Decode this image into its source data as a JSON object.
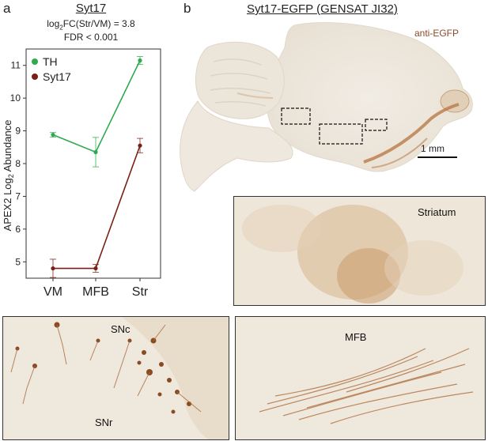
{
  "panel_a": {
    "letter": "a",
    "title": "Syt17",
    "stat_prefix": "log",
    "stat_sub": "2",
    "stat_rest": "FC(Str/VM) = 3.8",
    "fdr": "FDR < 0.001"
  },
  "panel_b": {
    "letter": "b",
    "title": "Syt17-EGFP (GENSAT JI32)",
    "stain": "anti-EGFP",
    "scale_bar": "1 mm",
    "insets": {
      "striatum": "Striatum",
      "snc": "SNc",
      "snr": "SNr",
      "mfb": "MFB"
    }
  },
  "colors": {
    "th": "#2eab4f",
    "syt17": "#7a1f14",
    "stain": "#8a4a2a"
  },
  "chart_data": {
    "type": "line",
    "categories": [
      "VM",
      "MFB",
      "Str"
    ],
    "ylabel_main": "APEX2 Log",
    "ylabel_sub": "2",
    "ylabel_tail": " Abundance",
    "ylim": [
      4.5,
      11.5
    ],
    "yticks": [
      5,
      6,
      7,
      8,
      9,
      10,
      11
    ],
    "legend_position": "top-left",
    "series": [
      {
        "name": "TH",
        "values": [
          8.88,
          8.35,
          11.15
        ],
        "err": [
          0.07,
          0.45,
          0.12
        ]
      },
      {
        "name": "Syt17",
        "values": [
          4.8,
          4.8,
          8.55
        ],
        "err": [
          0.28,
          0.12,
          0.22
        ]
      }
    ]
  }
}
